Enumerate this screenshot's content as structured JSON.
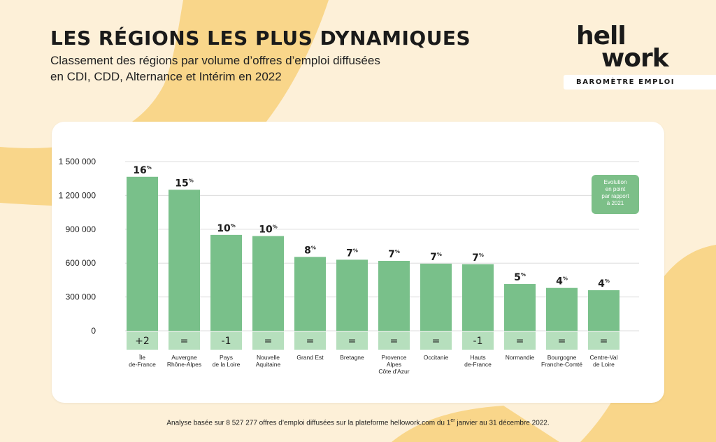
{
  "header": {
    "title": "LES RÉGIONS LES PLUS DYNAMIQUES",
    "subtitle_line1": "Classement des régions par volume d’offres d’emploi diffusées",
    "subtitle_line2": "en CDI, CDD, Alternance et Intérim en 2022"
  },
  "logo": {
    "word_line1": "hell",
    "word_line2": "work",
    "band": "BAROMÈTRE EMPLOI"
  },
  "legend_badge": {
    "lines": [
      "Evolution",
      "en point",
      "par rapport",
      "à 2021"
    ]
  },
  "footer": {
    "before": "Analyse basée sur 8 527 277 offres d’emploi diffusées sur la plateforme hellowork.com du 1",
    "sup": "er",
    "after": " janvier au 31 décembre 2022."
  },
  "colors": {
    "bar": "#79c08a",
    "evolution_band": "#b6dfbd",
    "background": "#fdf0d8",
    "swoosh": "#f9d68a",
    "badge": "#7cbf88"
  },
  "chart_data": {
    "type": "bar",
    "categories": [
      [
        "Île",
        "de-France"
      ],
      [
        "Auvergne",
        "Rhône-Alpes"
      ],
      [
        "Pays",
        "de la Loire"
      ],
      [
        "Nouvelle",
        "Aquitaine"
      ],
      [
        "Grand Est"
      ],
      [
        "Bretagne"
      ],
      [
        "Provence",
        "Alpes",
        "Côte d'Azur"
      ],
      [
        "Occitanie"
      ],
      [
        "Hauts",
        "de-France"
      ],
      [
        "Normandie"
      ],
      [
        "Bourgogne",
        "Franche-Comté"
      ],
      [
        "Centre-Val",
        "de Loire"
      ]
    ],
    "values": [
      1365000,
      1250000,
      850000,
      840000,
      655000,
      630000,
      620000,
      595000,
      590000,
      415000,
      380000,
      360000
    ],
    "share_labels": [
      "16",
      "15",
      "10",
      "10",
      "8",
      "7",
      "7",
      "7",
      "7",
      "5",
      "4",
      "4"
    ],
    "share_unit": "%",
    "evolution_labels": [
      "+2",
      "=",
      "-1",
      "=",
      "=",
      "=",
      "=",
      "=",
      "-1",
      "=",
      "=",
      "="
    ],
    "ylim": [
      0,
      1500000
    ],
    "yticks": [
      0,
      300000,
      600000,
      900000,
      1200000,
      1500000
    ],
    "ytick_labels": [
      "0",
      "300 000",
      "600 000",
      "900 000",
      "1 200 000",
      "1 500 000"
    ],
    "grid": true,
    "title": "",
    "xlabel": "",
    "ylabel": ""
  }
}
